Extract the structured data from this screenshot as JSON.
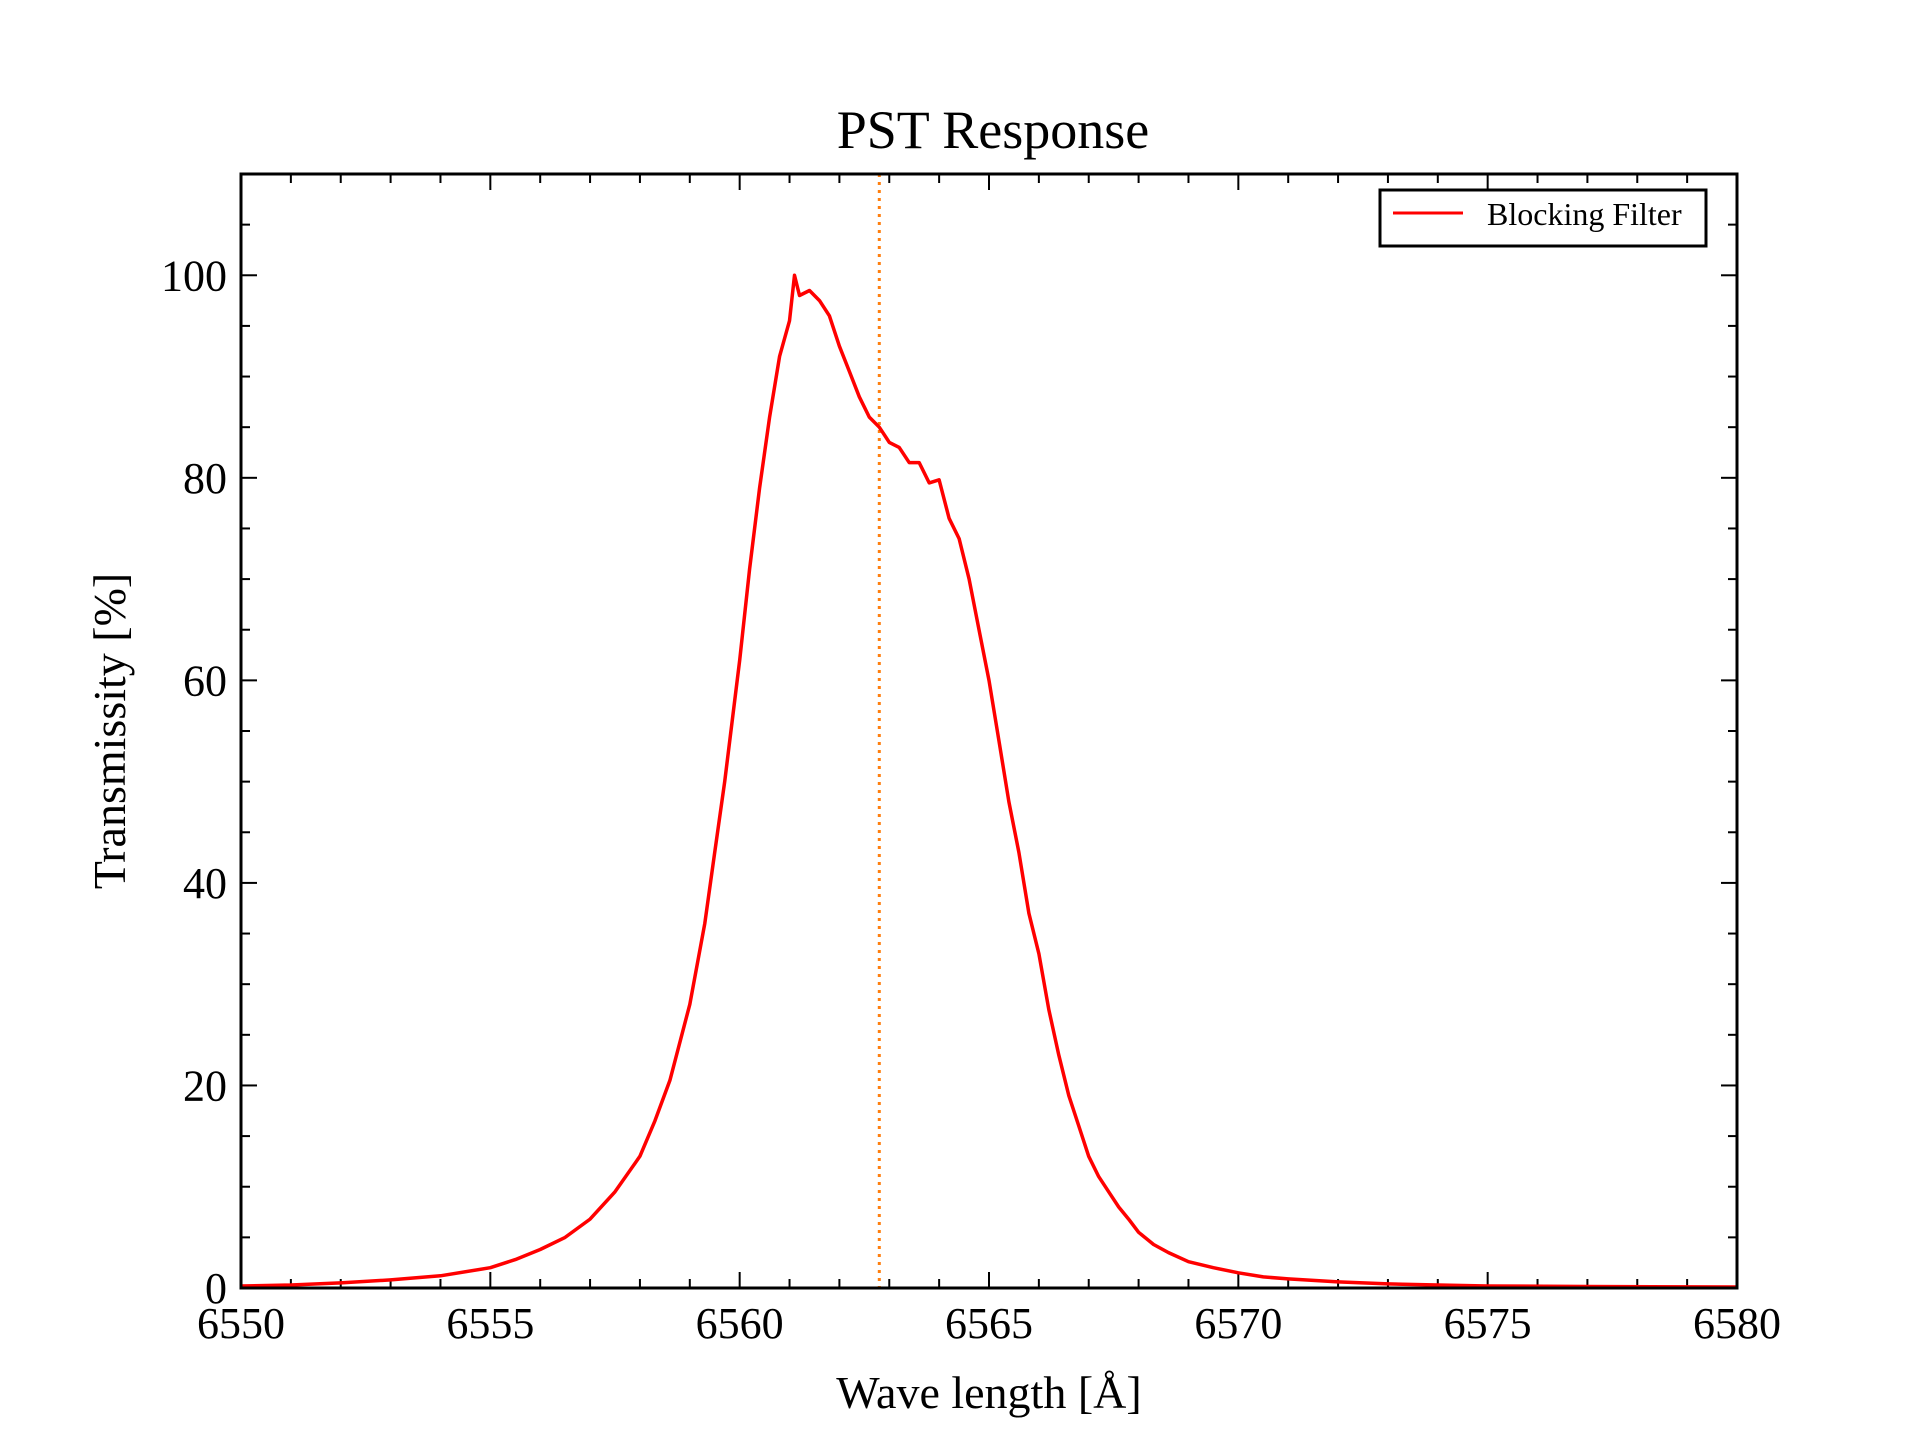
{
  "chart_data": {
    "type": "line",
    "title": "PST Response",
    "xlabel": "Wave length [Å]",
    "ylabel": "Transmissity [%]",
    "xlim": [
      6550,
      6580
    ],
    "ylim": [
      0,
      110
    ],
    "x_ticks": [
      "6550",
      "6555",
      "6560",
      "6565",
      "6570",
      "6575",
      "6580"
    ],
    "x_tick_values": [
      6550,
      6555,
      6560,
      6565,
      6570,
      6575,
      6580
    ],
    "y_ticks": [
      "0",
      "20",
      "40",
      "60",
      "80",
      "100"
    ],
    "y_tick_values": [
      0,
      20,
      40,
      60,
      80,
      100
    ],
    "legend_position": "top-right",
    "reference_line": {
      "x": 6562.8,
      "style": "dotted",
      "color": "#ff7f0e"
    },
    "series": [
      {
        "name": "Blocking Filter",
        "color": "#ff0000",
        "x": [
          6550,
          6551,
          6552,
          6553,
          6554,
          6555,
          6555.5,
          6556,
          6556.5,
          6557,
          6557.5,
          6558,
          6558.3,
          6558.6,
          6559,
          6559.3,
          6559.5,
          6559.7,
          6560,
          6560.2,
          6560.4,
          6560.6,
          6560.8,
          6561,
          6561.1,
          6561.2,
          6561.4,
          6561.6,
          6561.8,
          6562,
          6562.2,
          6562.4,
          6562.6,
          6562.8,
          6563,
          6563.2,
          6563.4,
          6563.6,
          6563.8,
          6564,
          6564.2,
          6564.4,
          6564.6,
          6564.8,
          6565,
          6565.2,
          6565.4,
          6565.6,
          6565.8,
          6566,
          6566.2,
          6566.4,
          6566.6,
          6566.8,
          6567,
          6567.2,
          6567.4,
          6567.6,
          6567.8,
          6568,
          6568.3,
          6568.6,
          6569,
          6569.5,
          6570,
          6570.5,
          6571,
          6572,
          6573,
          6574,
          6575,
          6577,
          6580
        ],
        "y": [
          0.2,
          0.3,
          0.5,
          0.8,
          1.2,
          2.0,
          2.8,
          3.8,
          5.0,
          6.8,
          9.5,
          13.0,
          16.5,
          20.5,
          28.0,
          36.0,
          43.0,
          50.0,
          62.0,
          71.0,
          79.0,
          86.0,
          92.0,
          95.5,
          100.0,
          98.0,
          98.5,
          97.5,
          96.0,
          93.0,
          90.5,
          88.0,
          86.0,
          85.0,
          83.5,
          83.0,
          81.5,
          81.5,
          79.5,
          79.8,
          76.0,
          74.0,
          70.0,
          65.0,
          60.0,
          54.0,
          48.0,
          43.0,
          37.0,
          33.0,
          27.5,
          23.0,
          19.0,
          16.0,
          13.0,
          11.0,
          9.5,
          8.0,
          6.8,
          5.5,
          4.3,
          3.5,
          2.6,
          2.0,
          1.5,
          1.1,
          0.9,
          0.6,
          0.4,
          0.3,
          0.2,
          0.15,
          0.1
        ]
      }
    ]
  }
}
